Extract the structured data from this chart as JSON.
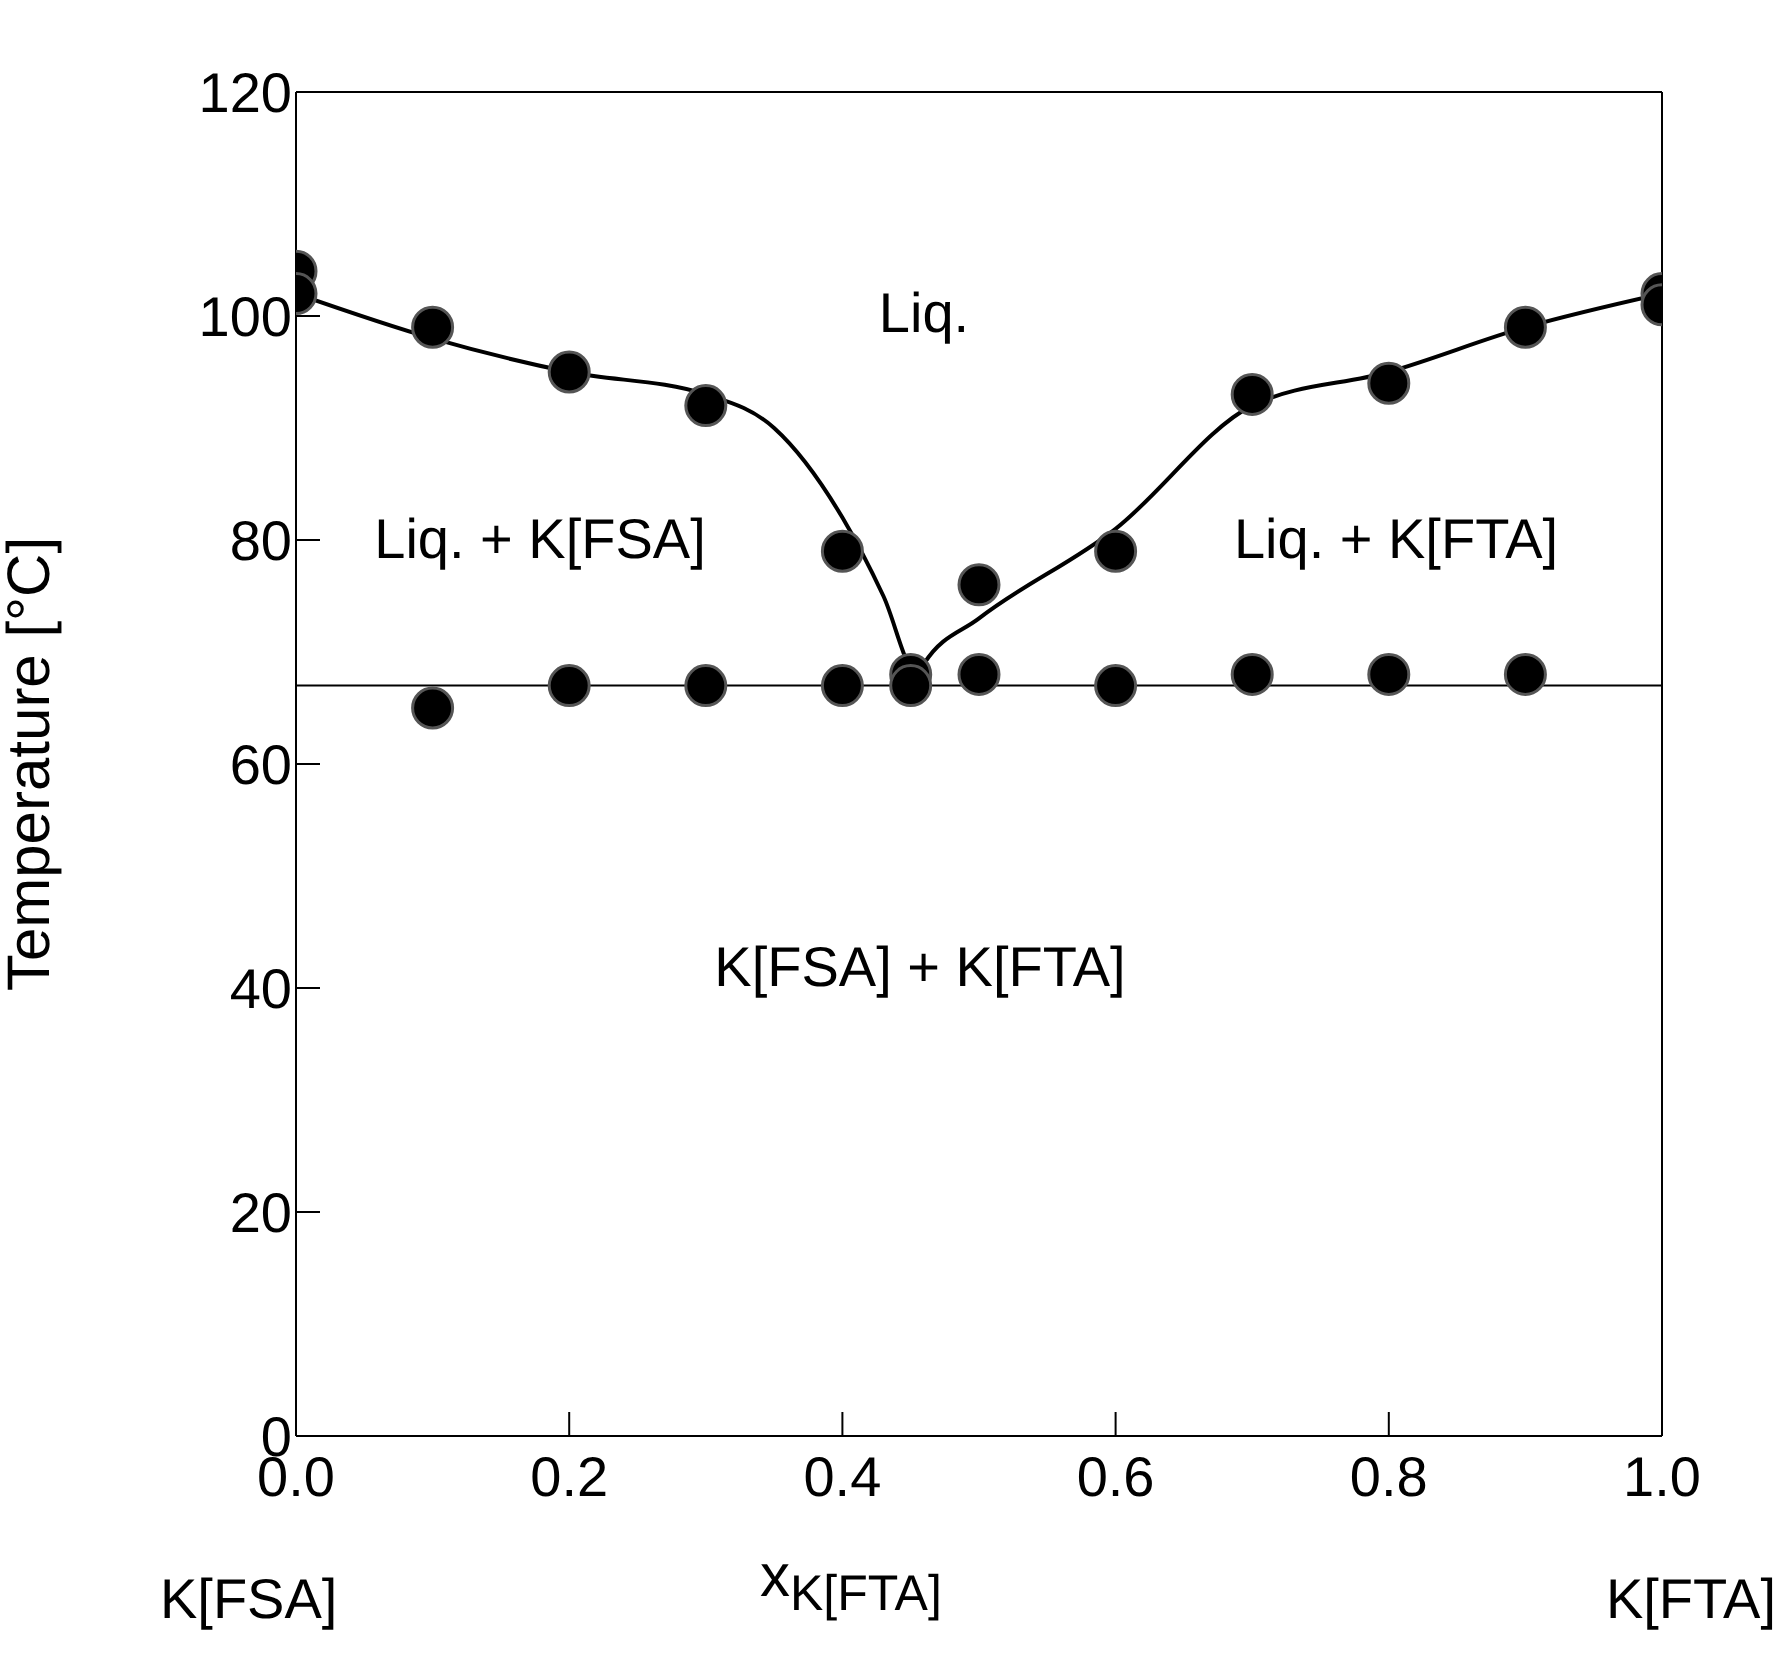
{
  "chart_data": {
    "type": "scatter",
    "xlabel": "x$_{K[FTA]}$",
    "ylabel": "Temperature  [°C]",
    "xlim": [
      0,
      1
    ],
    "xticks": [
      {
        "value": 0,
        "label": "0.0"
      },
      {
        "value": 0.2,
        "label": "0.2"
      },
      {
        "value": 0.4,
        "label": "0.4"
      },
      {
        "value": 0.6,
        "label": "0.6"
      },
      {
        "value": 0.8,
        "label": "0.8"
      },
      {
        "value": 1,
        "label": "1.0"
      }
    ],
    "ylim": [
      0,
      120
    ],
    "yticks": [
      0,
      20,
      40,
      60,
      80,
      100,
      120
    ],
    "series": [
      {
        "type": "scatter",
        "color": "#000000",
        "marker": "circle",
        "x": [
          0,
          0,
          0.1,
          0.2,
          0.3,
          0.4,
          0.45,
          0.45,
          0.5,
          0.6,
          0.7,
          0.8,
          0.9,
          1,
          1,
          0.1,
          0.2,
          0.3,
          0.4,
          0.5,
          0.6,
          0.7,
          0.8,
          0.9
        ],
        "values": [
          104,
          102,
          99,
          95,
          92,
          79,
          68,
          67,
          76,
          79,
          93,
          94,
          99,
          102,
          101,
          65,
          67,
          67,
          67,
          68,
          67,
          68,
          68,
          68
        ]
      },
      {
        "type": "line",
        "color": "#000000",
        "marker": "none",
        "x": [
          0,
          0.1,
          0.2,
          0.3,
          0.35,
          0.4,
          0.43,
          0.455,
          0.46,
          0.5,
          0.6,
          0.7,
          0.8,
          0.9,
          1
        ],
        "values": [
          102,
          98,
          95,
          93,
          90,
          82,
          75,
          68,
          69,
          73,
          81,
          92,
          95,
          99,
          102
        ]
      }
    ],
    "ref_lines": [
      {
        "axis": "y",
        "value": 67,
        "color": "#000000"
      }
    ],
    "annotations": [
      "Liq.",
      "Liq. + K[FSA]",
      "Liq. + K[FTA]",
      "K[FSA] + K[FTA]",
      "K[FSA]",
      "K[FTA]"
    ]
  }
}
